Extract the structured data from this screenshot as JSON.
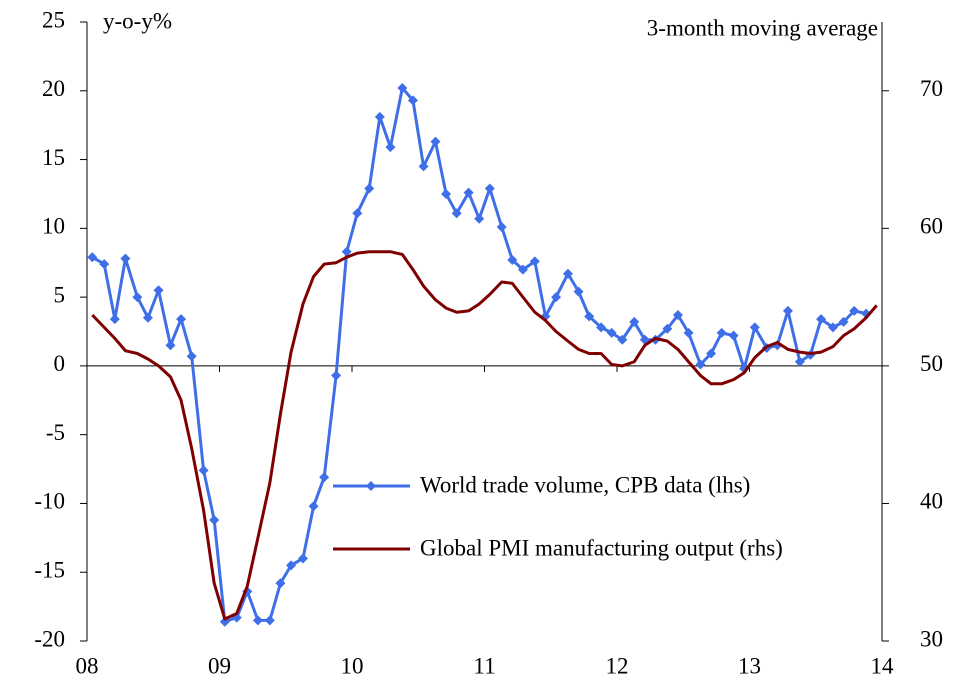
{
  "chart_data": {
    "type": "line",
    "ylabel": "y-o-y%",
    "annotation": "3-month moving average",
    "xlim": [
      2008,
      2014
    ],
    "xticks": [
      {
        "value": 2008,
        "label": "08"
      },
      {
        "value": 2009,
        "label": "09"
      },
      {
        "value": 2010,
        "label": "10"
      },
      {
        "value": 2011,
        "label": "11"
      },
      {
        "value": 2012,
        "label": "12"
      },
      {
        "value": 2013,
        "label": "13"
      },
      {
        "value": 2014,
        "label": "14"
      }
    ],
    "ylim": [
      -20,
      25
    ],
    "yticks": [
      -20,
      -15,
      -10,
      -5,
      0,
      5,
      10,
      15,
      20,
      25
    ],
    "y2lim": [
      30,
      75
    ],
    "y2ticks": [
      30,
      40,
      50,
      60,
      70
    ],
    "series": [
      {
        "name": "World trade volume, CPB data (lhs)",
        "color": "#3f6fe8",
        "marker": "diamond",
        "x": [
          2008.04,
          2008.13,
          2008.21,
          2008.29,
          2008.38,
          2008.46,
          2008.54,
          2008.63,
          2008.71,
          2008.79,
          2008.88,
          2008.96,
          2009.04,
          2009.13,
          2009.21,
          2009.29,
          2009.38,
          2009.46,
          2009.54,
          2009.63,
          2009.71,
          2009.79,
          2009.88,
          2009.96,
          2010.04,
          2010.13,
          2010.21,
          2010.29,
          2010.38,
          2010.46,
          2010.54,
          2010.63,
          2010.71,
          2010.79,
          2010.88,
          2010.96,
          2011.04,
          2011.13,
          2011.21,
          2011.29,
          2011.38,
          2011.46,
          2011.54,
          2011.63,
          2011.71,
          2011.79,
          2011.88,
          2011.96,
          2012.04,
          2012.13,
          2012.21,
          2012.29,
          2012.38,
          2012.46,
          2012.54,
          2012.63,
          2012.71,
          2012.79,
          2012.88,
          2012.96,
          2013.04,
          2013.13,
          2013.21,
          2013.29,
          2013.38,
          2013.46,
          2013.54,
          2013.63,
          2013.71,
          2013.79,
          2013.88
        ],
        "values": [
          7.9,
          7.4,
          3.4,
          7.8,
          5.0,
          3.5,
          5.5,
          1.5,
          3.4,
          0.7,
          -7.6,
          -11.2,
          -18.6,
          -18.3,
          -16.4,
          -18.5,
          -18.5,
          -15.8,
          -14.5,
          -14.0,
          -10.2,
          -8.1,
          -0.7,
          8.3,
          11.1,
          12.9,
          18.1,
          15.9,
          20.2,
          19.3,
          14.5,
          16.3,
          12.5,
          11.1,
          12.6,
          10.7,
          12.9,
          10.1,
          7.7,
          7.0,
          7.6,
          3.6,
          5.0,
          6.7,
          5.4,
          3.6,
          2.8,
          2.4,
          1.9,
          3.2,
          1.9,
          1.9,
          2.7,
          3.7,
          2.4,
          0.1,
          0.9,
          2.4,
          2.2,
          -0.2,
          2.8,
          1.3,
          1.5,
          4.0,
          0.3,
          0.8,
          3.4,
          2.8,
          3.2,
          4.0,
          3.8
        ]
      },
      {
        "name": "Global PMI manufacturing output (rhs)",
        "color": "#800000",
        "axis": "y2",
        "x": [
          2008.04,
          2008.13,
          2008.21,
          2008.29,
          2008.38,
          2008.46,
          2008.54,
          2008.63,
          2008.71,
          2008.79,
          2008.88,
          2008.96,
          2009.04,
          2009.13,
          2009.21,
          2009.29,
          2009.38,
          2009.46,
          2009.54,
          2009.63,
          2009.71,
          2009.79,
          2009.88,
          2009.96,
          2010.04,
          2010.13,
          2010.21,
          2010.29,
          2010.38,
          2010.46,
          2010.54,
          2010.63,
          2010.71,
          2010.79,
          2010.88,
          2010.96,
          2011.04,
          2011.13,
          2011.21,
          2011.29,
          2011.38,
          2011.46,
          2011.54,
          2011.63,
          2011.71,
          2011.79,
          2011.88,
          2011.96,
          2012.04,
          2012.13,
          2012.21,
          2012.29,
          2012.38,
          2012.46,
          2012.54,
          2012.63,
          2012.71,
          2012.79,
          2012.88,
          2012.96,
          2013.04,
          2013.13,
          2013.21,
          2013.29,
          2013.38,
          2013.46,
          2013.54,
          2013.63,
          2013.71,
          2013.79,
          2013.88,
          2013.96
        ],
        "values": [
          53.7,
          52.8,
          52.0,
          51.1,
          50.9,
          50.5,
          50.0,
          49.2,
          47.5,
          44.0,
          39.5,
          34.2,
          31.6,
          32.0,
          34.0,
          37.5,
          41.5,
          46.5,
          51.0,
          54.5,
          56.5,
          57.4,
          57.5,
          57.9,
          58.2,
          58.3,
          58.3,
          58.3,
          58.1,
          57.0,
          55.8,
          54.8,
          54.2,
          53.9,
          54.0,
          54.5,
          55.2,
          56.1,
          56.0,
          55.0,
          53.9,
          53.3,
          52.5,
          51.8,
          51.2,
          50.9,
          50.9,
          50.1,
          50.0,
          50.3,
          51.5,
          52.0,
          51.8,
          51.2,
          50.3,
          49.3,
          48.7,
          48.7,
          49.0,
          49.5,
          50.6,
          51.4,
          51.7,
          51.2,
          51.0,
          50.9,
          51.0,
          51.4,
          52.2,
          52.7,
          53.5,
          54.4
        ]
      }
    ]
  }
}
